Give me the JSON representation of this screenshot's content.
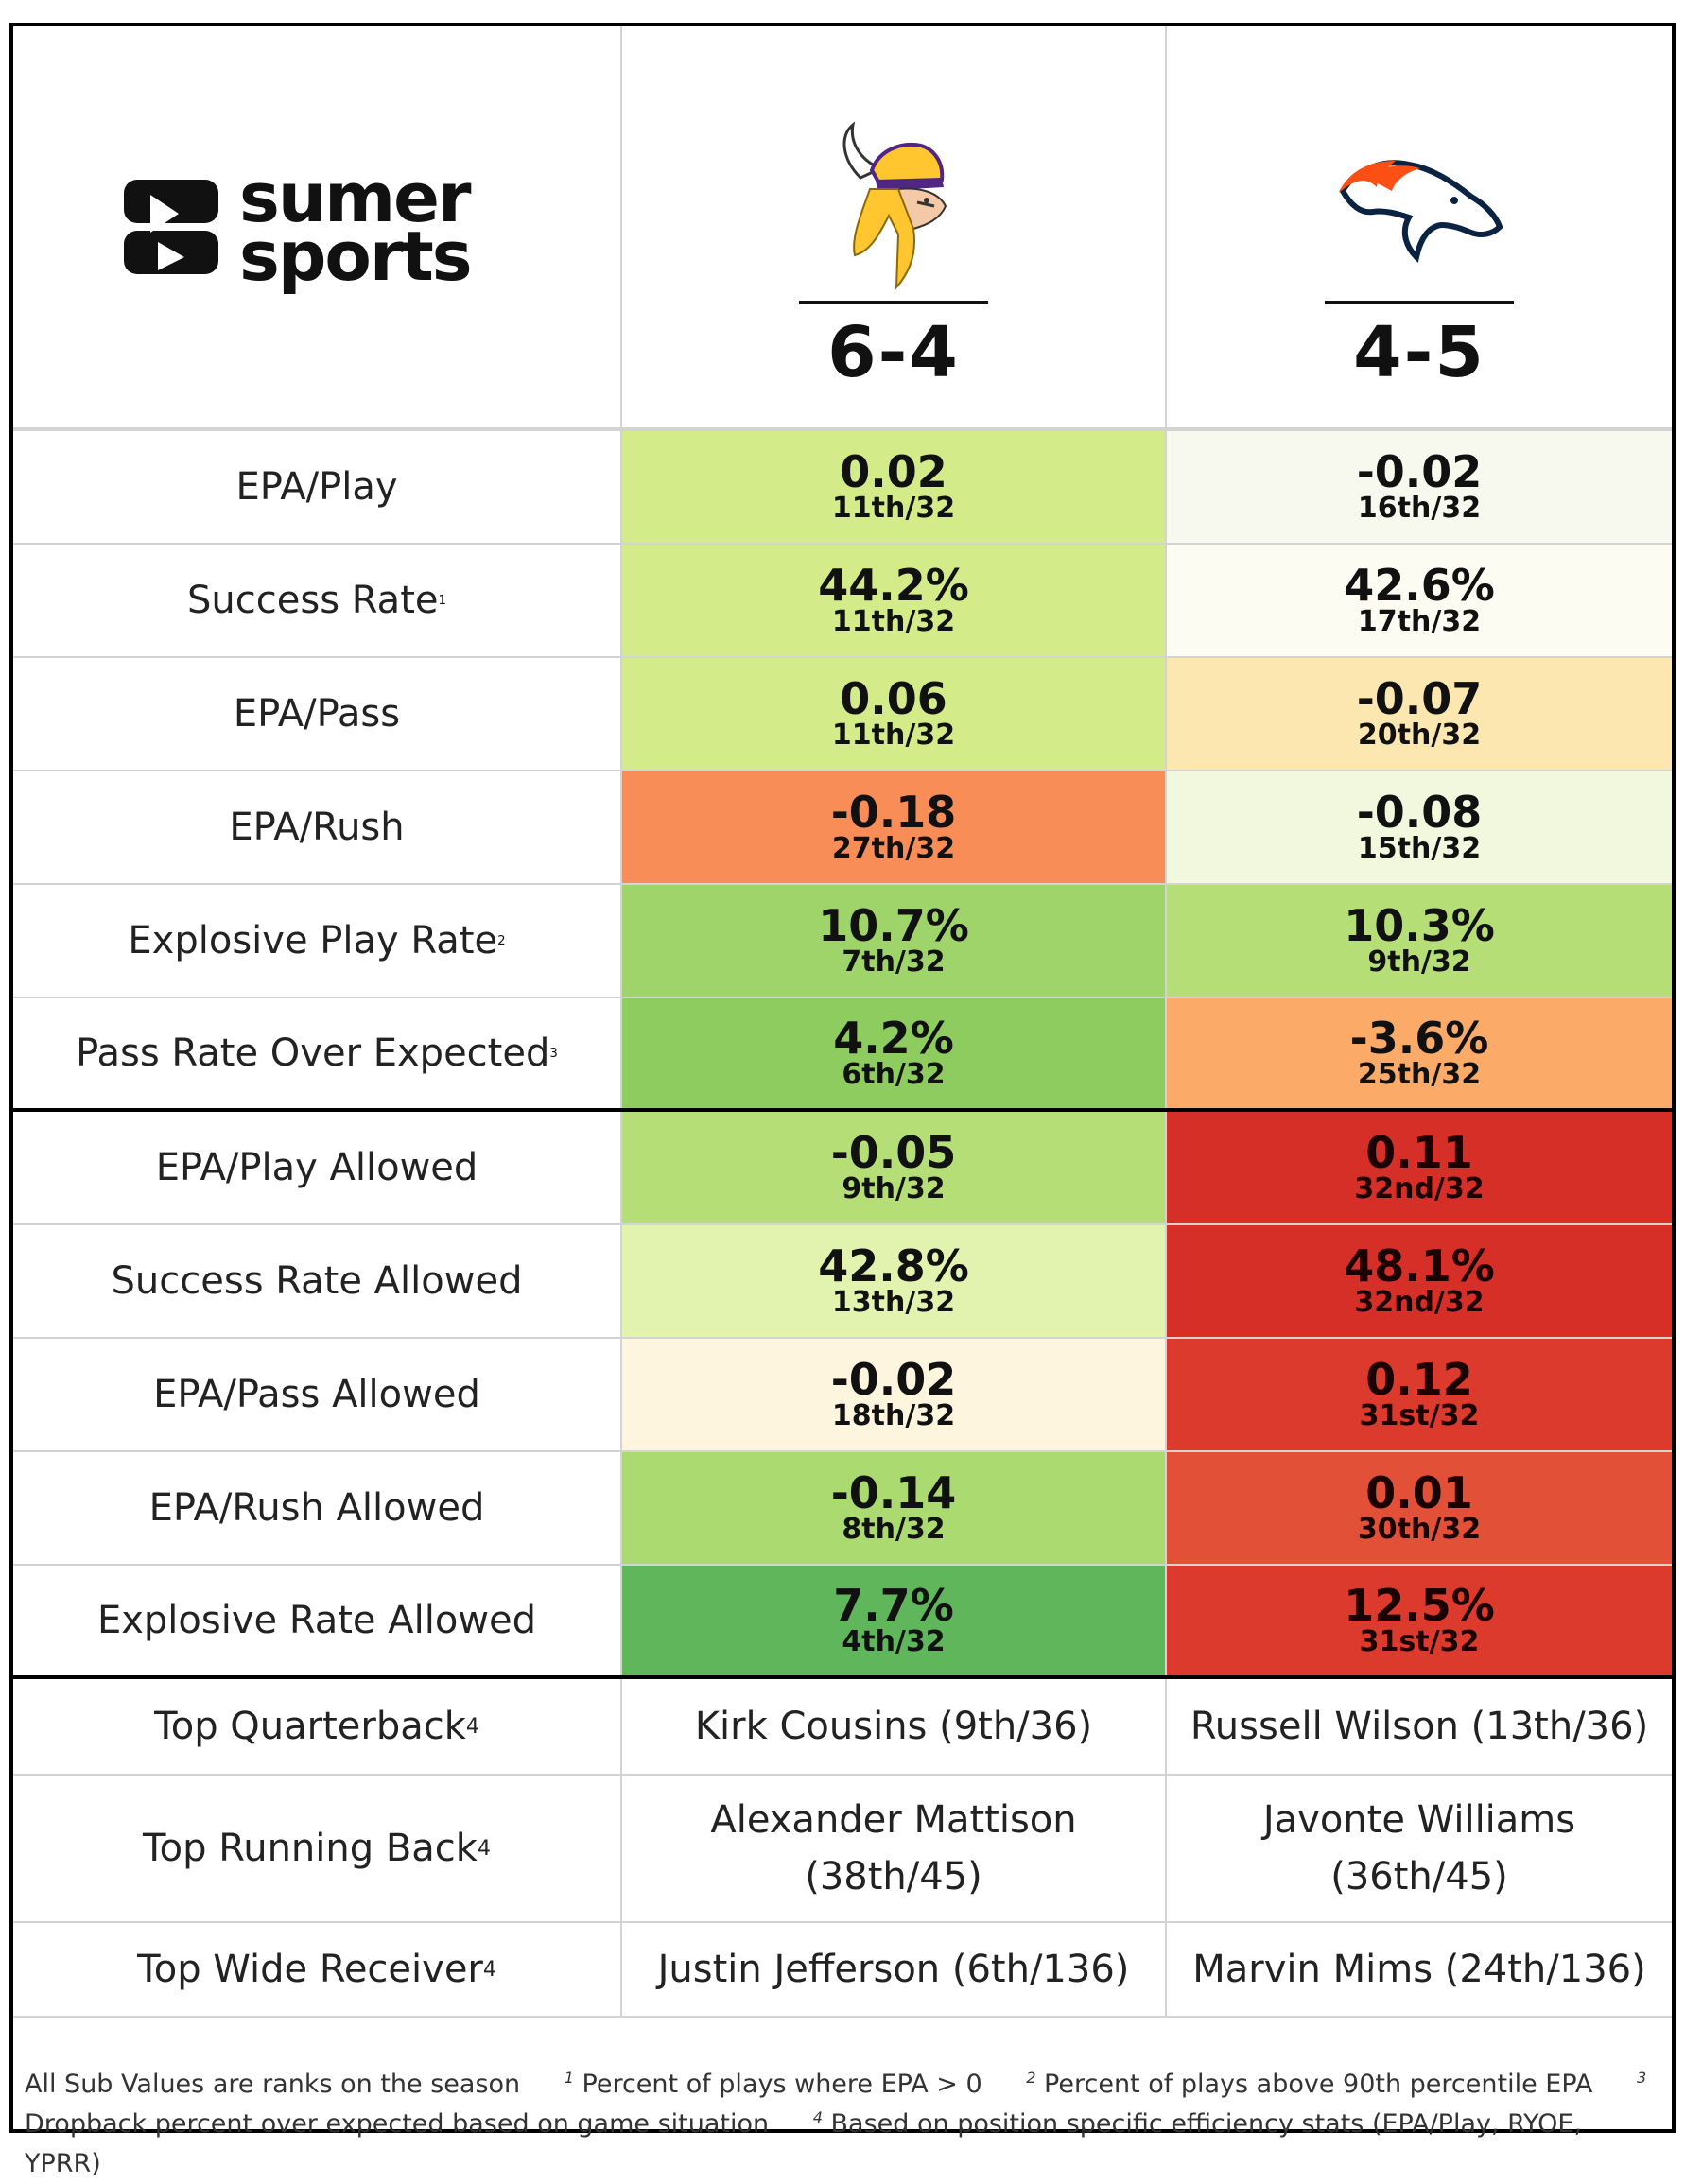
{
  "brand": {
    "line1": "sumer",
    "line2": "sports"
  },
  "teams": [
    {
      "name_icon": "vikings-logo-icon",
      "record": "6-4"
    },
    {
      "name_icon": "broncos-logo-icon",
      "record": "4-5"
    }
  ],
  "offense": [
    {
      "label": "EPA/Play",
      "sup": "",
      "a": {
        "value": "0.02",
        "rank": "11th/32",
        "bg": "#d4eb8a"
      },
      "b": {
        "value": "-0.02",
        "rank": "16th/32",
        "bg": "#f7f9ef"
      }
    },
    {
      "label": "Success Rate",
      "sup": "1",
      "a": {
        "value": "44.2%",
        "rank": "11th/32",
        "bg": "#d4eb8a"
      },
      "b": {
        "value": "42.6%",
        "rank": "17th/32",
        "bg": "#fdfcf2"
      }
    },
    {
      "label": "EPA/Pass",
      "sup": "",
      "a": {
        "value": "0.06",
        "rank": "11th/32",
        "bg": "#d4eb8a"
      },
      "b": {
        "value": "-0.07",
        "rank": "20th/32",
        "bg": "#fde7b0"
      }
    },
    {
      "label": "EPA/Rush",
      "sup": "",
      "a": {
        "value": "-0.18",
        "rank": "27th/32",
        "bg": "#f88d58"
      },
      "b": {
        "value": "-0.08",
        "rank": "15th/32",
        "bg": "#f1f8dd"
      }
    },
    {
      "label": "Explosive Play Rate",
      "sup": "2",
      "a": {
        "value": "10.7%",
        "rank": "7th/32",
        "bg": "#9fd46a"
      },
      "b": {
        "value": "10.3%",
        "rank": "9th/32",
        "bg": "#b5df76"
      }
    },
    {
      "label": "Pass Rate Over Expected",
      "sup": "3",
      "a": {
        "value": "4.2%",
        "rank": "6th/32",
        "bg": "#8ecc5f"
      },
      "b": {
        "value": "-3.6%",
        "rank": "25th/32",
        "bg": "#fbab67"
      }
    }
  ],
  "defense": [
    {
      "label": "EPA/Play Allowed",
      "sup": "",
      "a": {
        "value": "-0.05",
        "rank": "9th/32",
        "bg": "#b5df76"
      },
      "b": {
        "value": "0.11",
        "rank": "32nd/32",
        "bg": "#d62f27",
        "dark": true
      }
    },
    {
      "label": "Success Rate Allowed",
      "sup": "",
      "a": {
        "value": "42.8%",
        "rank": "13th/32",
        "bg": "#e2f3b0"
      },
      "b": {
        "value": "48.1%",
        "rank": "32nd/32",
        "bg": "#d62f27",
        "dark": true
      }
    },
    {
      "label": "EPA/Pass Allowed",
      "sup": "",
      "a": {
        "value": "-0.02",
        "rank": "18th/32",
        "bg": "#fef5df"
      },
      "b": {
        "value": "0.12",
        "rank": "31st/32",
        "bg": "#dc3a2d",
        "dark": true
      }
    },
    {
      "label": "EPA/Rush Allowed",
      "sup": "",
      "a": {
        "value": "-0.14",
        "rank": "8th/32",
        "bg": "#abda70"
      },
      "b": {
        "value": "0.01",
        "rank": "30th/32",
        "bg": "#e35038",
        "dark": true
      }
    },
    {
      "label": "Explosive Rate Allowed",
      "sup": "",
      "a": {
        "value": "7.7%",
        "rank": "4th/32",
        "bg": "#5fb65b"
      },
      "b": {
        "value": "12.5%",
        "rank": "31st/32",
        "bg": "#dc3a2d",
        "dark": true
      }
    }
  ],
  "players": [
    {
      "label": "Top Quarterback",
      "sup": "4",
      "a": "Kirk Cousins (9th/36)",
      "b": "Russell Wilson (13th/36)"
    },
    {
      "label": "Top Running Back",
      "sup": "4",
      "a": "Alexander Mattison (38th/45)",
      "b": "Javonte Williams (36th/45)"
    },
    {
      "label": "Top Wide Receiver",
      "sup": "4",
      "a": "Justin Jefferson (6th/136)",
      "b": "Marvin Mims (24th/136)"
    }
  ],
  "footer": {
    "base": "All Sub Values are ranks on the season",
    "n1": "1",
    "t1": "Percent of plays where EPA > 0",
    "n2": "2",
    "t2": "Percent of plays above 90th percentile EPA",
    "n3": "3",
    "t3": "Dropback percent over expected based on game situation",
    "n4": "4",
    "t4": "Based on position specific efficiency stats (EPA/Play, RYOE, YPRR)"
  }
}
